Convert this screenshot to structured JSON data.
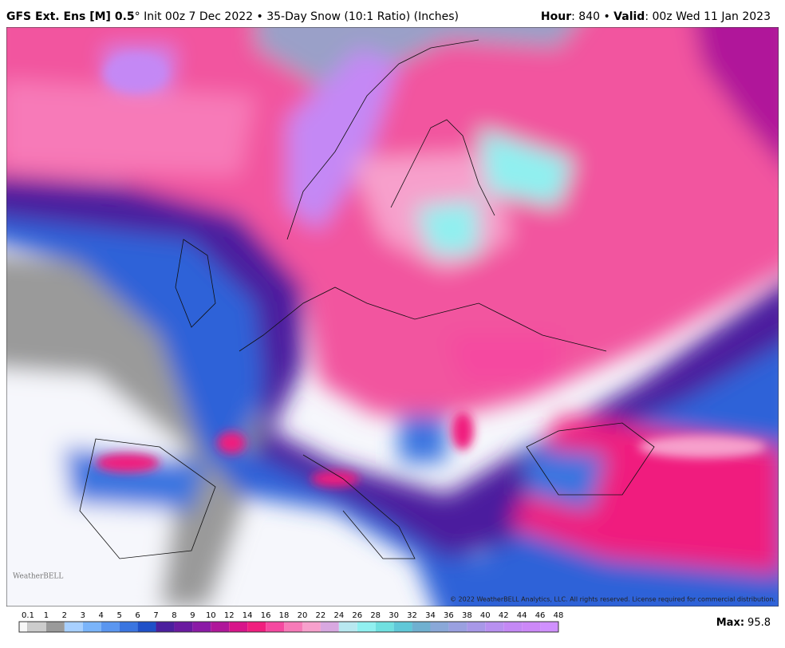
{
  "header": {
    "left": [
      {
        "text": "GFS Ext.  Ens [M] 0.5",
        "bold": true
      },
      {
        "text": "°",
        "bold": false
      },
      {
        "text": " Init 00z 7 Dec 2022 • 35-Day Snow (10:1 Ratio) (Inches)",
        "bold": false
      }
    ],
    "right": [
      {
        "text": "Hour",
        "bold": true
      },
      {
        "text": ": 840 • ",
        "bold": false
      },
      {
        "text": "Valid",
        "bold": true
      },
      {
        "text": ": 00z Wed 11 Jan 2023",
        "bold": false
      }
    ]
  },
  "map": {
    "logo": "WeatherBELL",
    "copyright": "© 2022 WeatherBELL Analytics, LLC. All rights reserved. License required for commercial distribution."
  },
  "legend": {
    "ticks": [
      0.1,
      1,
      2,
      3,
      4,
      5,
      6,
      7,
      8,
      9,
      10,
      12,
      14,
      16,
      18,
      20,
      22,
      24,
      26,
      28,
      30,
      32,
      34,
      36,
      38,
      40,
      42,
      44,
      46,
      48
    ],
    "below_color": "#f7f7f7",
    "colors": [
      "#cccccc",
      "#9a9a9a",
      "#a8d0ff",
      "#7ab4fa",
      "#5a96f0",
      "#3a75e0",
      "#1f50c8",
      "#4b1f9e",
      "#6a1aa0",
      "#8b1aa6",
      "#b0179a",
      "#d8148a",
      "#f01e7e",
      "#f548a0",
      "#f77ab8",
      "#f7a0cc",
      "#d8a8e0",
      "#b8e8f0",
      "#90f0f0",
      "#70e0e0",
      "#60c8d8",
      "#70b0d0",
      "#8aa8d8",
      "#9aa0e0",
      "#a898e8",
      "#b890f0",
      "#c488f5",
      "#cc88f8",
      "#d090ff"
    ],
    "max_label": "Max:",
    "max_value": 95.8
  }
}
